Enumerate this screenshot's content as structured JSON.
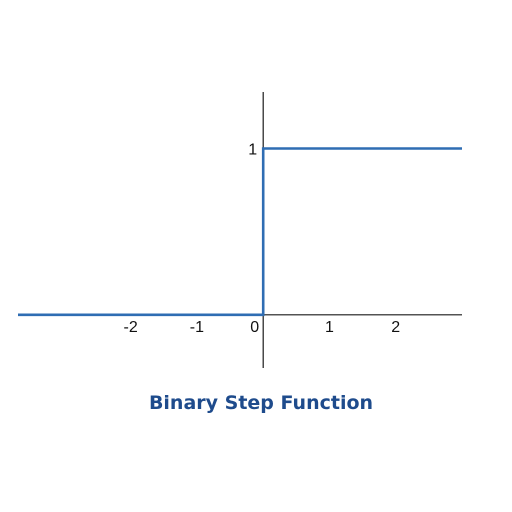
{
  "chart_data": {
    "type": "line",
    "title": "Binary Step Function",
    "xlabel": "",
    "ylabel": "",
    "xlim": [
      -3.7,
      3.0
    ],
    "ylim": [
      -0.32,
      1.34
    ],
    "x_ticks": [
      {
        "value": -2,
        "label": "-2"
      },
      {
        "value": -1,
        "label": "-1"
      },
      {
        "value": 0,
        "label": "0"
      },
      {
        "value": 1,
        "label": "1"
      },
      {
        "value": 2,
        "label": "2"
      }
    ],
    "y_ticks": [
      {
        "value": 1,
        "label": "1"
      }
    ],
    "grid": false,
    "series": [
      {
        "x": [
          -3.7,
          0,
          0,
          3.0
        ],
        "y": [
          0,
          0,
          1,
          1
        ]
      }
    ]
  },
  "colors": {
    "line": "#2f6db3",
    "axis": "#1a1a1a",
    "title": "#1e4b8c"
  }
}
